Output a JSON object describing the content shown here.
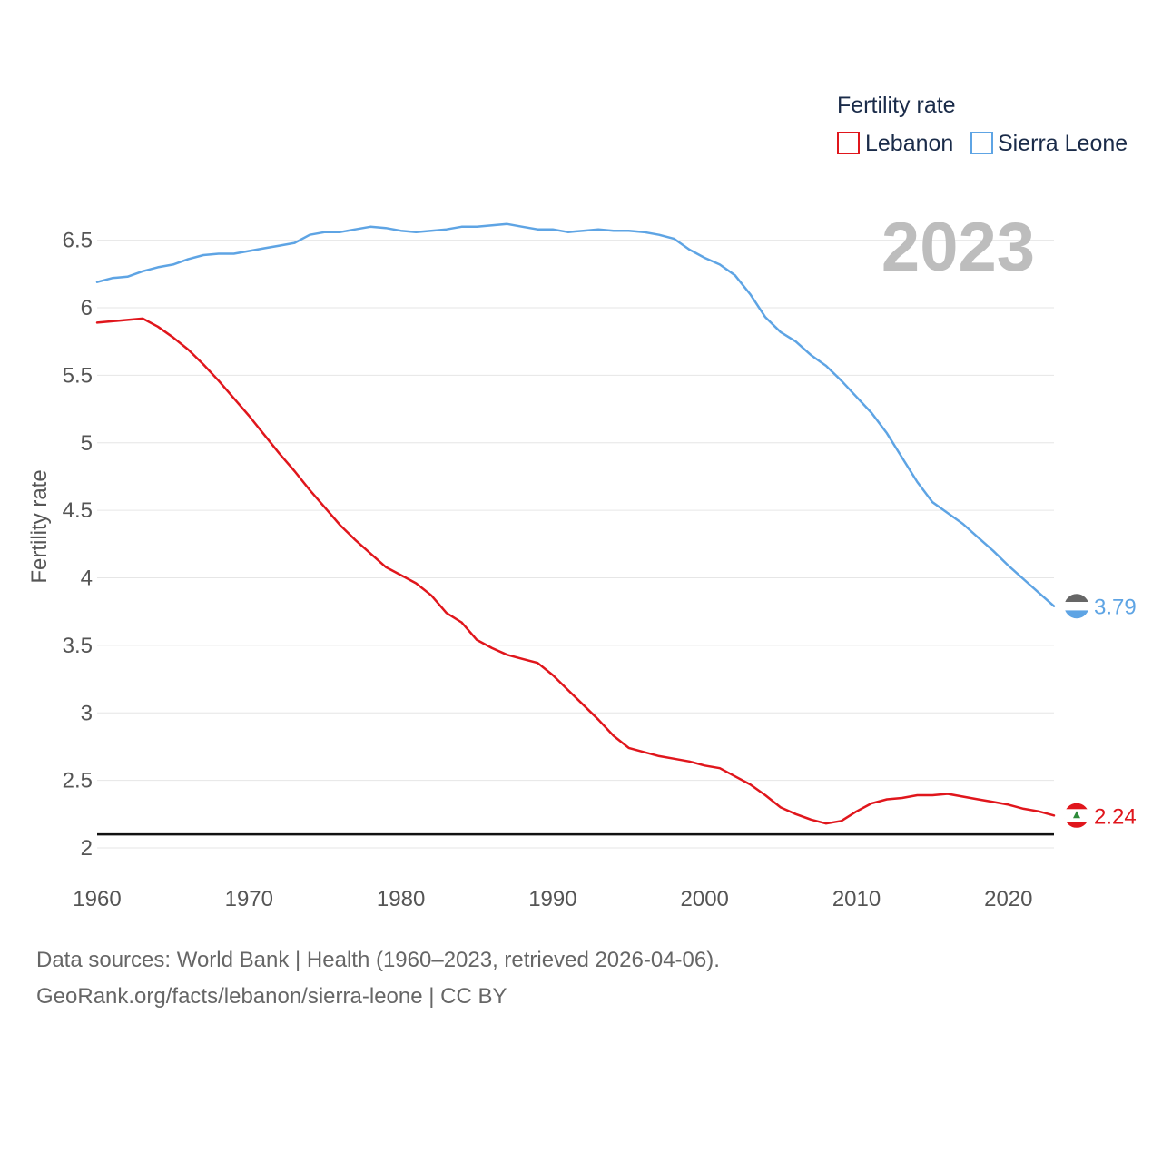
{
  "chart_data": {
    "type": "line",
    "title": "",
    "year_label": "2023",
    "xlabel": "",
    "ylabel": "Fertility rate",
    "xlim": [
      1960,
      2023
    ],
    "ylim": [
      2,
      6.75
    ],
    "x_ticks": [
      1960,
      1970,
      1980,
      1990,
      2000,
      2010,
      2020
    ],
    "x_tick_labels": [
      "1960",
      "1970",
      "1980",
      "1990",
      "2000",
      "2010",
      "2020"
    ],
    "y_ticks": [
      2,
      2.5,
      3,
      3.5,
      4,
      4.5,
      5,
      5.5,
      6,
      6.5
    ],
    "y_tick_labels": [
      "2",
      "2.5",
      "3",
      "3.5",
      "4",
      "4.5",
      "5",
      "5.5",
      "6",
      "6.5"
    ],
    "reference_line": 2.1,
    "grid": true,
    "legend": {
      "title": "Fertility rate",
      "position": "top-right",
      "entries": [
        "Lebanon",
        "Sierra Leone"
      ]
    },
    "x": [
      1960,
      1961,
      1962,
      1963,
      1964,
      1965,
      1966,
      1967,
      1968,
      1969,
      1970,
      1971,
      1972,
      1973,
      1974,
      1975,
      1976,
      1977,
      1978,
      1979,
      1980,
      1981,
      1982,
      1983,
      1984,
      1985,
      1986,
      1987,
      1988,
      1989,
      1990,
      1991,
      1992,
      1993,
      1994,
      1995,
      1996,
      1997,
      1998,
      1999,
      2000,
      2001,
      2002,
      2003,
      2004,
      2005,
      2006,
      2007,
      2008,
      2009,
      2010,
      2011,
      2012,
      2013,
      2014,
      2015,
      2016,
      2017,
      2018,
      2019,
      2020,
      2021,
      2022,
      2023
    ],
    "series": [
      {
        "name": "Lebanon",
        "color": "#e0161c",
        "end_label": "2.24",
        "values": [
          5.89,
          5.9,
          5.91,
          5.92,
          5.86,
          5.78,
          5.69,
          5.58,
          5.46,
          5.33,
          5.2,
          5.06,
          4.92,
          4.79,
          4.65,
          4.52,
          4.39,
          4.28,
          4.18,
          4.08,
          4.02,
          3.96,
          3.87,
          3.74,
          3.67,
          3.54,
          3.48,
          3.43,
          3.4,
          3.37,
          3.28,
          3.17,
          3.06,
          2.95,
          2.83,
          2.74,
          2.71,
          2.68,
          2.66,
          2.64,
          2.61,
          2.59,
          2.53,
          2.47,
          2.39,
          2.3,
          2.25,
          2.21,
          2.18,
          2.2,
          2.27,
          2.33,
          2.36,
          2.37,
          2.39,
          2.39,
          2.4,
          2.38,
          2.36,
          2.34,
          2.32,
          2.29,
          2.27,
          2.24
        ]
      },
      {
        "name": "Sierra Leone",
        "color": "#5ea4e4",
        "end_label": "3.79",
        "values": [
          6.19,
          6.22,
          6.23,
          6.27,
          6.3,
          6.32,
          6.36,
          6.39,
          6.4,
          6.4,
          6.42,
          6.44,
          6.46,
          6.48,
          6.54,
          6.56,
          6.56,
          6.58,
          6.6,
          6.59,
          6.57,
          6.56,
          6.57,
          6.58,
          6.6,
          6.6,
          6.61,
          6.62,
          6.6,
          6.58,
          6.58,
          6.56,
          6.57,
          6.58,
          6.57,
          6.57,
          6.56,
          6.54,
          6.51,
          6.43,
          6.37,
          6.32,
          6.24,
          6.1,
          5.93,
          5.82,
          5.75,
          5.65,
          5.57,
          5.46,
          5.34,
          5.22,
          5.07,
          4.89,
          4.71,
          4.56,
          4.48,
          4.4,
          4.3,
          4.2,
          4.09,
          3.99,
          3.89,
          3.79
        ]
      }
    ]
  },
  "footer": {
    "line1": "Data sources: World Bank | Health (1960–2023, retrieved 2026-04-06).",
    "line2": "GeoRank.org/facts/lebanon/sierra-leone | CC BY"
  }
}
